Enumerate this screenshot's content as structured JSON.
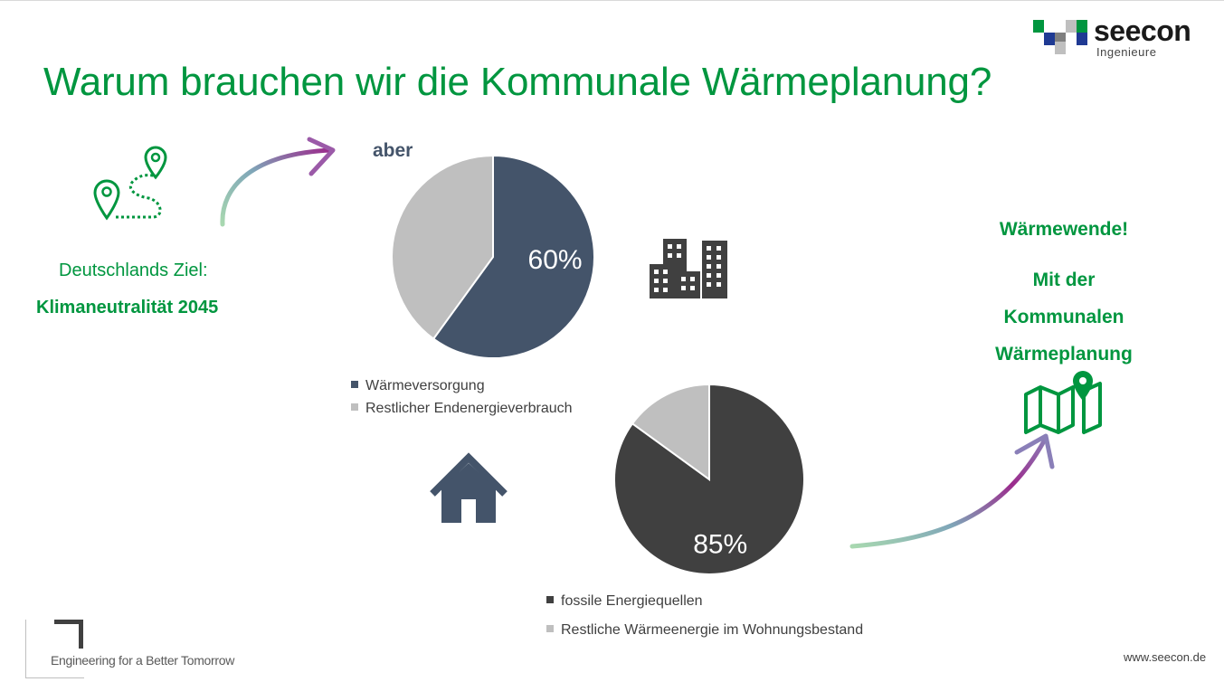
{
  "slide": {
    "title": "Warum brauchen wir die Kommunale Wärmeplanung?",
    "logo": {
      "name": "seecon",
      "subtitle": "Ingenieure"
    },
    "goal": {
      "label": "Deutschlands Ziel:",
      "value": "Klimaneutralität 2045"
    },
    "aber": "aber",
    "right": {
      "line1": "Wärmewende!",
      "line2": "Mit der",
      "line3": "Kommunalen",
      "line4": "Wärmeplanung"
    },
    "footer": {
      "tagline": "Engineering for a Better Tomorrow",
      "website": "www.seecon.de"
    },
    "colors": {
      "green": "#00963f",
      "navy": "#44546a",
      "gray": "#bfbfbf",
      "dark": "#404040"
    },
    "icons": [
      "route-icon",
      "buildings-icon",
      "house-icon",
      "map-pin-icon"
    ]
  },
  "chart_data": [
    {
      "type": "pie",
      "slices": [
        {
          "name": "Wärmeversorgung",
          "value": 60,
          "color": "#44546a",
          "label": "60%"
        },
        {
          "name": "Restlicher Endenergieverbrauch",
          "value": 40,
          "color": "#bfbfbf",
          "label": ""
        }
      ],
      "legend": "bottom-left"
    },
    {
      "type": "pie",
      "slices": [
        {
          "name": "fossile Energiequellen",
          "value": 85,
          "color": "#404040",
          "label": "85%"
        },
        {
          "name": "Restliche Wärmeenergie im Wohnungsbestand",
          "value": 15,
          "color": "#bfbfbf",
          "label": ""
        }
      ],
      "legend": "bottom-left"
    }
  ]
}
